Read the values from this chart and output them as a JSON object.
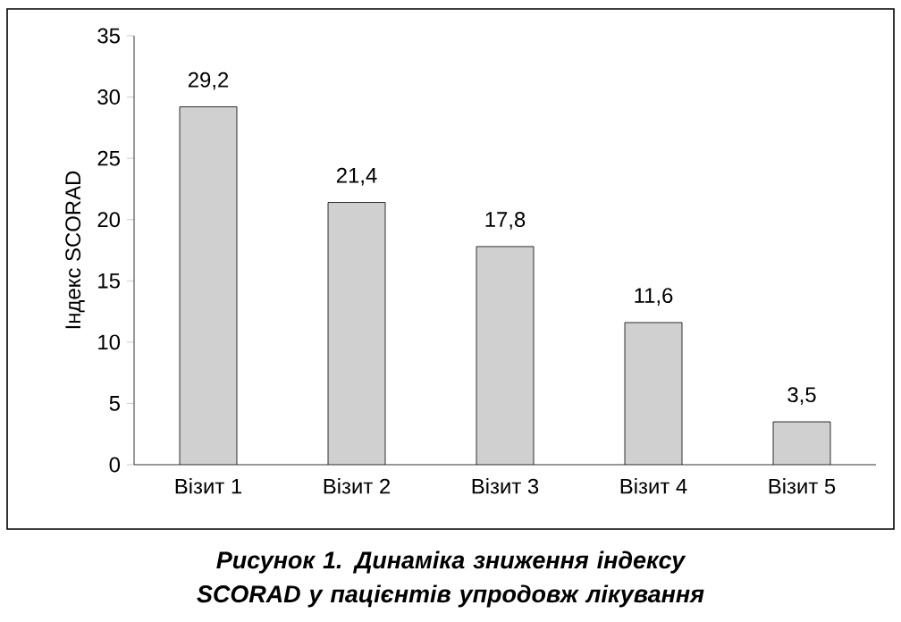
{
  "chart_data": {
    "type": "bar",
    "title": "Рисунок 1. Динаміка зниження індексу SCORAD у пацієнтів упродовж лікування",
    "ylabel": "Індекс SCORAD",
    "categories": [
      "Візит 1",
      "Візит 2",
      "Візит 3",
      "Візит 4",
      "Візит 5"
    ],
    "values": [
      29.2,
      21.4,
      17.8,
      11.6,
      3.5
    ],
    "value_labels": [
      "29,2",
      "21,4",
      "17,8",
      "11,6",
      "3,5"
    ],
    "color": "#d0d0d0",
    "ylim": [
      0,
      35
    ],
    "yticks": [
      0,
      5,
      10,
      15,
      20,
      25,
      30,
      35
    ],
    "grid": false
  }
}
